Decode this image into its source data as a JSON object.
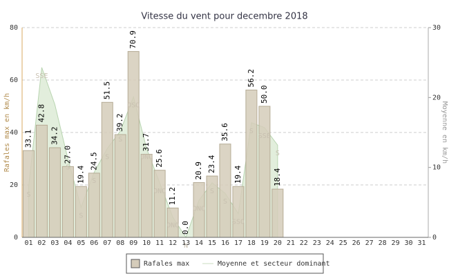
{
  "chart_data": {
    "type": "bar",
    "title": "Vitesse du vent pour decembre 2018",
    "ylabel": "Rafales max en km/h",
    "y2label": "Moyenne en km/h",
    "categories": [
      "01",
      "02",
      "03",
      "04",
      "05",
      "06",
      "07",
      "08",
      "09",
      "10",
      "11",
      "12",
      "13",
      "14",
      "15",
      "16",
      "17",
      "18",
      "19",
      "20",
      "21",
      "22",
      "23",
      "24",
      "25",
      "26",
      "27",
      "28",
      "29",
      "30",
      "31"
    ],
    "series": [
      {
        "name": "Rafales max",
        "type": "bar",
        "color": "#d5ccba",
        "values": [
          33.1,
          42.8,
          34.2,
          27.0,
          19.4,
          24.5,
          51.5,
          39.2,
          70.9,
          31.7,
          25.6,
          11.2,
          0.0,
          20.9,
          23.4,
          35.6,
          19.4,
          56.2,
          50.0,
          18.4,
          null,
          null,
          null,
          null,
          null,
          null,
          null,
          null,
          null,
          null,
          null
        ],
        "value_labels": [
          "33.1",
          "42.8",
          "34.2",
          "27.0",
          "19.4",
          "24.5",
          "51.5",
          "39.2",
          "70.9",
          "31.7",
          "25.6",
          "11.2",
          "0.0",
          "20.9",
          "23.4",
          "35.6",
          "19.4",
          "56.2",
          "50.0",
          "18.4",
          null,
          null,
          null,
          null,
          null,
          null,
          null,
          null,
          null,
          null,
          null
        ]
      },
      {
        "name": "Moyenne et secteur dominant",
        "type": "area",
        "axis": "y2",
        "color": "#e2eedc",
        "values": [
          7.3,
          24.3,
          19,
          11.2,
          4.3,
          9.3,
          12.7,
          15.2,
          20.1,
          12.7,
          7.8,
          2.9,
          0,
          5.3,
          7.8,
          6.3,
          3.4,
          16.4,
          15.7,
          13.2,
          null,
          null,
          null,
          null,
          null,
          null,
          null,
          null,
          null,
          null,
          null
        ],
        "sectors": [
          "S",
          "SSE",
          null,
          "S",
          "S",
          "S",
          "S",
          "S",
          "OSO",
          "ONO",
          "ONO",
          "ONO",
          "N",
          "ONO",
          "S",
          "S",
          "SSO",
          "S",
          "SSE",
          "S",
          null,
          null,
          null,
          null,
          null,
          null,
          null,
          null,
          null,
          null,
          null
        ]
      }
    ],
    "ylim": [
      0,
      80
    ],
    "yticks": [
      0,
      20,
      40,
      60,
      80
    ],
    "y2lim": [
      0,
      30
    ],
    "y2ticks": [
      0,
      10,
      20,
      30
    ],
    "grid": true,
    "legend": "bottom"
  }
}
